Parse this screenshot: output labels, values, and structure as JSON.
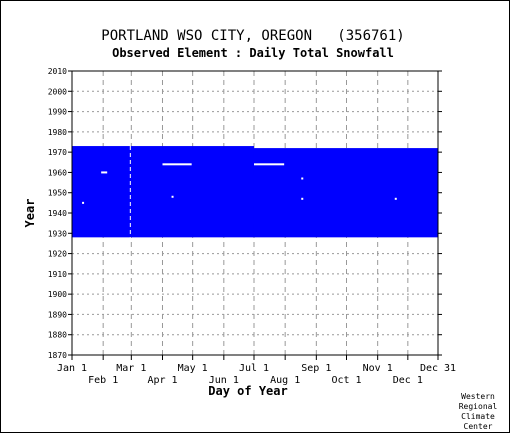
{
  "chart_data": {
    "type": "heatmap",
    "title": "PORTLAND WSO CITY, OREGON   (356761)",
    "subtitle": "Observed Element : Daily Total Snowfall",
    "xlabel": "Day of Year",
    "ylabel": "Year",
    "x_range_doy": [
      1,
      365
    ],
    "ylim": [
      1870,
      2010
    ],
    "y_ticks": [
      2010,
      2000,
      1990,
      1980,
      1970,
      1960,
      1950,
      1940,
      1930,
      1920,
      1910,
      1900,
      1890,
      1880,
      1870
    ],
    "x_ticks_upper": [
      {
        "label": "Jan 1",
        "doy": 1
      },
      {
        "label": "Mar 1",
        "doy": 60
      },
      {
        "label": "May 1",
        "doy": 121
      },
      {
        "label": "Jul 1",
        "doy": 182
      },
      {
        "label": "Sep 1",
        "doy": 244
      },
      {
        "label": "Nov 1",
        "doy": 305
      },
      {
        "label": "Dec 31",
        "doy": 365
      }
    ],
    "x_ticks_lower": [
      {
        "label": "Feb 1",
        "doy": 32
      },
      {
        "label": "Apr 1",
        "doy": 91
      },
      {
        "label": "Jun 1",
        "doy": 152
      },
      {
        "label": "Aug 1",
        "doy": 213
      },
      {
        "label": "Oct 1",
        "doy": 274
      },
      {
        "label": "Dec 1",
        "doy": 335
      }
    ],
    "grid": true,
    "data_color": "#0000ff",
    "data_blocks": [
      {
        "doy_start": 1,
        "doy_end": 182,
        "year_start": 1928,
        "year_end": 1973
      },
      {
        "doy_start": 182,
        "doy_end": 365,
        "year_start": 1928,
        "year_end": 1972
      }
    ],
    "missing_segments": [
      {
        "doy_start": 30,
        "doy_end": 36,
        "year": 1960
      },
      {
        "doy_start": 91,
        "doy_end": 120,
        "year": 1964
      },
      {
        "doy_start": 182,
        "doy_end": 212,
        "year": 1964
      }
    ],
    "missing_columns": [
      {
        "doy": 59,
        "year_start": 1928,
        "year_end": 1973
      }
    ],
    "missing_points": [
      {
        "doy": 12,
        "year": 1945
      },
      {
        "doy": 101,
        "year": 1948
      },
      {
        "doy": 230,
        "year": 1957
      },
      {
        "doy": 230,
        "year": 1947
      },
      {
        "doy": 323,
        "year": 1947
      }
    ]
  },
  "footer": {
    "credit_lines": [
      "Western",
      "Regional",
      "Climate",
      "Center"
    ]
  }
}
